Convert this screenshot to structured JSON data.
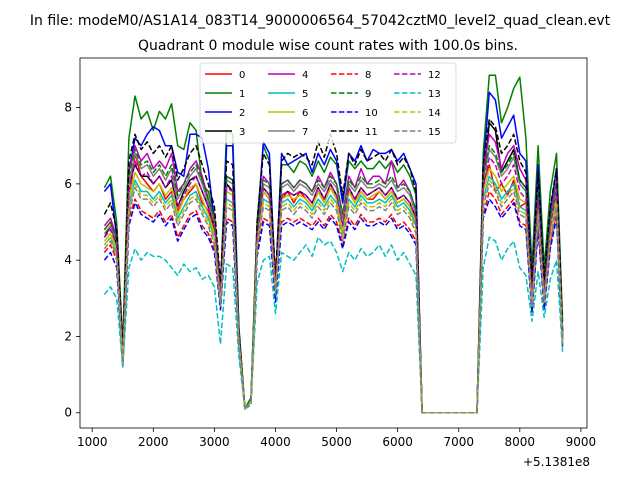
{
  "figure": {
    "suptitle": "In file: modeM0/AS1A14_083T14_9000006564_57042cztM0_level2_quad_clean.evt"
  },
  "chart_data": {
    "type": "line",
    "title": "Quadrant 0 module wise count rates with 100.0s bins.",
    "xlabel": "",
    "ylabel": "",
    "x_offset_label": "+5.1381e8",
    "xlim": [
      800,
      9100
    ],
    "ylim": [
      -0.4,
      9.3
    ],
    "x_ticks": [
      1000,
      2000,
      3000,
      4000,
      5000,
      6000,
      7000,
      8000,
      9000
    ],
    "y_ticks": [
      0,
      2,
      4,
      6,
      8
    ],
    "grid": false,
    "legend_placement": "top-center",
    "x": [
      1200,
      1300,
      1400,
      1500,
      1600,
      1700,
      1800,
      1900,
      2000,
      2100,
      2200,
      2300,
      2400,
      2500,
      2600,
      2700,
      2800,
      2900,
      3000,
      3100,
      3200,
      3300,
      3400,
      3500,
      3600,
      3700,
      3800,
      3900,
      4000,
      4100,
      4200,
      4300,
      4400,
      4500,
      4600,
      4700,
      4800,
      4900,
      5000,
      5100,
      5200,
      5300,
      5400,
      5500,
      5600,
      5700,
      5800,
      5900,
      6000,
      6100,
      6200,
      6300,
      6400,
      7300,
      7400,
      7500,
      7600,
      7700,
      7800,
      7900,
      8000,
      8100,
      8200,
      8300,
      8400,
      8500,
      8600,
      8700
    ],
    "series": [
      {
        "name": "0",
        "color": "#ff0000",
        "dash": "solid",
        "values": [
          4.8,
          5.0,
          4.5,
          1.5,
          5.5,
          6.8,
          6.2,
          6.0,
          5.8,
          6.0,
          5.6,
          5.8,
          5.3,
          5.6,
          5.8,
          6.0,
          5.5,
          5.3,
          4.8,
          3.2,
          6.0,
          5.8,
          2.0,
          0.1,
          0.3,
          4.8,
          5.8,
          5.6,
          3.5,
          5.6,
          5.8,
          5.5,
          5.8,
          5.6,
          5.4,
          5.8,
          5.5,
          5.9,
          5.6,
          4.8,
          5.8,
          5.5,
          5.8,
          5.6,
          5.6,
          5.8,
          5.6,
          5.8,
          5.5,
          5.6,
          5.4,
          5.0,
          0,
          0,
          6.0,
          6.5,
          5.8,
          6.0,
          5.7,
          6.1,
          5.4,
          5.5,
          3.0,
          5.7,
          3.2,
          5.0,
          5.9,
          2.0
        ]
      },
      {
        "name": "1",
        "color": "#008000",
        "dash": "solid",
        "values": [
          5.9,
          6.2,
          5.0,
          1.8,
          7.2,
          8.3,
          7.7,
          7.9,
          7.4,
          7.9,
          7.7,
          8.1,
          7.0,
          6.9,
          7.6,
          7.4,
          6.0,
          5.8,
          5.2,
          3.3,
          7.4,
          7.3,
          2.3,
          0.1,
          0.4,
          5.0,
          7.0,
          6.6,
          3.5,
          6.5,
          6.5,
          6.3,
          6.6,
          6.5,
          6.2,
          6.6,
          6.3,
          6.7,
          6.5,
          5.5,
          6.6,
          6.4,
          6.6,
          6.4,
          6.4,
          6.6,
          6.4,
          6.6,
          6.3,
          6.5,
          6.2,
          5.7,
          0,
          0,
          6.8,
          8.85,
          8.85,
          7.6,
          8.0,
          8.5,
          8.8,
          7.2,
          3.8,
          7.0,
          3.8,
          5.8,
          6.8,
          2.4
        ]
      },
      {
        "name": "2",
        "color": "#0000ff",
        "dash": "solid",
        "values": [
          5.8,
          6.0,
          4.6,
          1.6,
          6.3,
          7.2,
          7.0,
          7.3,
          7.5,
          7.4,
          7.0,
          7.0,
          6.3,
          6.2,
          7.3,
          7.3,
          7.2,
          6.4,
          5.0,
          3.1,
          7.0,
          7.0,
          2.2,
          0.1,
          0.3,
          4.7,
          7.1,
          6.8,
          3.3,
          6.8,
          6.5,
          6.6,
          6.7,
          6.8,
          6.3,
          6.8,
          6.5,
          6.9,
          6.6,
          5.5,
          6.8,
          6.6,
          7.0,
          6.6,
          6.9,
          6.8,
          6.8,
          6.9,
          6.6,
          6.8,
          6.4,
          6.0,
          0,
          0,
          6.4,
          8.4,
          8.2,
          7.2,
          7.5,
          7.8,
          6.8,
          6.6,
          3.4,
          6.5,
          3.4,
          5.3,
          6.4,
          2.1
        ]
      },
      {
        "name": "3",
        "color": "#000000",
        "dash": "solid",
        "values": [
          4.6,
          4.9,
          4.4,
          1.4,
          6.0,
          6.5,
          6.2,
          6.2,
          6.0,
          6.2,
          5.9,
          6.1,
          5.4,
          5.8,
          6.1,
          6.2,
          5.8,
          5.4,
          4.9,
          3.0,
          6.0,
          5.8,
          2.0,
          0.1,
          0.3,
          4.7,
          5.9,
          5.7,
          3.4,
          5.7,
          5.8,
          5.7,
          5.8,
          5.7,
          5.5,
          5.9,
          5.6,
          6.0,
          5.7,
          4.9,
          5.9,
          5.6,
          5.9,
          5.7,
          5.8,
          5.9,
          5.7,
          5.9,
          5.6,
          5.7,
          5.5,
          5.1,
          0,
          0,
          6.0,
          7.6,
          7.4,
          6.3,
          6.6,
          6.9,
          6.1,
          5.9,
          3.0,
          5.7,
          3.1,
          4.9,
          5.8,
          1.9
        ]
      },
      {
        "name": "4",
        "color": "#bf00bf",
        "dash": "solid",
        "values": [
          4.9,
          5.1,
          4.6,
          1.5,
          6.3,
          7.0,
          6.6,
          6.8,
          6.4,
          6.6,
          6.4,
          6.8,
          5.8,
          6.0,
          6.4,
          6.6,
          6.2,
          5.6,
          5.1,
          3.2,
          6.2,
          6.1,
          2.1,
          0.1,
          0.3,
          4.8,
          6.2,
          6.0,
          3.4,
          6.0,
          6.1,
          5.9,
          6.1,
          6.0,
          5.8,
          6.2,
          5.9,
          6.3,
          6.0,
          5.2,
          6.2,
          5.9,
          6.4,
          6.0,
          6.2,
          6.2,
          6.0,
          6.6,
          5.9,
          6.1,
          5.8,
          5.3,
          0,
          0,
          6.3,
          7.3,
          7.1,
          6.4,
          6.8,
          7.0,
          6.4,
          6.1,
          3.2,
          6.0,
          3.3,
          5.1,
          6.1,
          2.0
        ]
      },
      {
        "name": "5",
        "color": "#00bfbf",
        "dash": "solid",
        "values": [
          4.4,
          4.6,
          4.2,
          1.3,
          5.4,
          6.1,
          5.8,
          5.8,
          5.6,
          5.8,
          5.5,
          5.7,
          5.1,
          5.4,
          5.7,
          5.8,
          5.4,
          5.1,
          4.6,
          2.9,
          5.6,
          5.5,
          1.9,
          0.1,
          0.3,
          4.5,
          5.6,
          5.5,
          3.2,
          5.5,
          5.6,
          5.4,
          5.6,
          5.5,
          5.3,
          5.6,
          5.4,
          5.7,
          5.5,
          4.7,
          5.6,
          5.4,
          5.7,
          5.5,
          5.5,
          5.6,
          5.5,
          5.7,
          5.4,
          5.5,
          5.3,
          4.9,
          0,
          0,
          5.6,
          6.2,
          6.0,
          5.6,
          5.8,
          6.0,
          5.4,
          5.3,
          2.9,
          5.3,
          3.0,
          4.7,
          5.6,
          1.9
        ]
      },
      {
        "name": "6",
        "color": "#bfbf00",
        "dash": "solid",
        "values": [
          4.5,
          4.7,
          4.3,
          1.4,
          5.6,
          6.3,
          6.0,
          5.9,
          5.8,
          6.0,
          5.7,
          5.9,
          5.2,
          5.6,
          5.9,
          6.0,
          5.6,
          5.2,
          4.7,
          3.0,
          5.8,
          5.7,
          2.0,
          0.1,
          0.3,
          4.6,
          5.8,
          5.6,
          3.3,
          5.6,
          5.7,
          5.6,
          5.7,
          5.6,
          5.4,
          5.8,
          5.5,
          5.9,
          5.6,
          4.8,
          5.8,
          5.5,
          5.8,
          5.6,
          5.7,
          5.8,
          5.6,
          5.8,
          5.5,
          5.6,
          5.4,
          5.0,
          0,
          0,
          5.8,
          6.4,
          6.2,
          5.8,
          6.0,
          6.2,
          5.6,
          5.5,
          3.0,
          5.5,
          3.1,
          4.8,
          5.7,
          1.9
        ]
      },
      {
        "name": "7",
        "color": "#808080",
        "dash": "solid",
        "values": [
          4.7,
          4.9,
          4.5,
          1.5,
          6.0,
          6.8,
          6.4,
          6.5,
          6.2,
          6.4,
          6.1,
          6.4,
          5.6,
          5.9,
          6.2,
          6.4,
          6.0,
          5.5,
          5.0,
          3.1,
          6.1,
          6.0,
          2.0,
          0.1,
          0.3,
          4.7,
          6.0,
          5.9,
          3.4,
          5.9,
          6.0,
          5.8,
          6.0,
          5.9,
          5.7,
          6.0,
          5.8,
          6.1,
          5.9,
          5.1,
          6.0,
          5.8,
          6.1,
          5.9,
          5.9,
          6.0,
          5.9,
          6.1,
          5.8,
          5.9,
          5.7,
          5.2,
          0,
          0,
          6.1,
          6.9,
          6.7,
          6.2,
          6.4,
          6.7,
          6.0,
          5.8,
          3.1,
          5.8,
          3.2,
          5.0,
          5.9,
          2.0
        ]
      },
      {
        "name": "8",
        "color": "#ff0000",
        "dash": "dashed",
        "values": [
          4.2,
          4.4,
          4.0,
          1.3,
          5.1,
          5.6,
          5.3,
          5.2,
          5.1,
          5.3,
          5.0,
          5.2,
          4.6,
          4.9,
          5.2,
          5.3,
          4.9,
          4.7,
          4.3,
          2.8,
          5.1,
          5.0,
          1.8,
          0.1,
          0.3,
          4.2,
          5.1,
          5.0,
          3.0,
          5.0,
          5.1,
          5.0,
          5.1,
          5.0,
          4.9,
          5.1,
          4.9,
          5.2,
          5.0,
          4.4,
          5.1,
          4.9,
          5.2,
          5.0,
          5.0,
          5.1,
          5.0,
          5.2,
          4.9,
          5.0,
          4.8,
          4.5,
          0,
          0,
          5.2,
          5.8,
          5.6,
          5.2,
          5.4,
          5.6,
          5.0,
          4.9,
          2.7,
          4.9,
          2.8,
          4.4,
          5.2,
          1.8
        ]
      },
      {
        "name": "9",
        "color": "#008000",
        "dash": "dashed",
        "values": [
          4.8,
          5.0,
          4.5,
          1.5,
          6.2,
          6.9,
          6.5,
          6.6,
          6.3,
          6.5,
          6.2,
          6.5,
          5.7,
          6.0,
          6.3,
          6.5,
          6.1,
          5.6,
          5.1,
          3.2,
          6.2,
          6.1,
          2.1,
          0.1,
          0.3,
          4.8,
          6.1,
          6.0,
          3.4,
          6.0,
          6.1,
          5.9,
          6.1,
          6.0,
          5.8,
          6.1,
          5.9,
          6.2,
          6.0,
          5.2,
          6.1,
          5.9,
          6.2,
          6.0,
          6.0,
          6.1,
          6.0,
          6.2,
          5.9,
          6.0,
          5.8,
          5.3,
          0,
          0,
          6.2,
          7.0,
          6.8,
          6.3,
          6.5,
          6.8,
          6.1,
          5.9,
          3.2,
          5.9,
          3.3,
          5.1,
          6.0,
          2.0
        ]
      },
      {
        "name": "10",
        "color": "#0000ff",
        "dash": "dashed",
        "values": [
          4.0,
          4.2,
          3.8,
          1.2,
          4.9,
          5.5,
          5.2,
          5.1,
          5.0,
          5.2,
          4.9,
          5.1,
          4.5,
          4.8,
          5.1,
          5.2,
          4.8,
          4.6,
          4.2,
          2.7,
          5.0,
          4.9,
          1.8,
          0.1,
          0.3,
          4.1,
          5.0,
          4.9,
          2.9,
          4.9,
          5.0,
          4.9,
          5.0,
          4.9,
          4.8,
          5.0,
          4.8,
          5.1,
          4.9,
          4.3,
          5.0,
          4.8,
          5.1,
          4.9,
          4.9,
          5.0,
          4.9,
          5.1,
          4.8,
          4.9,
          4.7,
          4.4,
          0,
          0,
          5.1,
          5.6,
          5.4,
          5.1,
          5.3,
          5.5,
          4.9,
          4.8,
          2.6,
          4.8,
          2.7,
          4.3,
          5.1,
          1.7
        ]
      },
      {
        "name": "11",
        "color": "#000000",
        "dash": "dashed",
        "values": [
          5.2,
          5.5,
          4.8,
          1.6,
          6.6,
          7.3,
          6.9,
          7.1,
          6.8,
          7.0,
          6.7,
          7.0,
          6.1,
          6.4,
          6.8,
          7.0,
          6.5,
          6.0,
          5.4,
          3.4,
          6.6,
          6.5,
          2.2,
          0.1,
          0.3,
          5.0,
          6.8,
          6.5,
          3.5,
          6.6,
          6.8,
          6.7,
          6.8,
          6.7,
          6.5,
          7.1,
          6.7,
          7.3,
          6.8,
          5.7,
          6.8,
          6.5,
          6.9,
          6.6,
          6.7,
          6.8,
          6.6,
          6.9,
          6.5,
          6.7,
          6.4,
          5.8,
          0,
          0,
          6.5,
          7.7,
          7.5,
          6.8,
          7.0,
          7.3,
          6.6,
          6.3,
          3.4,
          6.3,
          3.5,
          5.4,
          6.4,
          2.1
        ]
      },
      {
        "name": "12",
        "color": "#bf00bf",
        "dash": "dashed",
        "values": [
          4.6,
          4.8,
          4.4,
          1.4,
          5.8,
          6.6,
          6.2,
          6.3,
          6.0,
          6.2,
          5.9,
          6.2,
          5.4,
          5.7,
          6.0,
          6.2,
          5.8,
          5.4,
          4.9,
          3.1,
          5.9,
          5.8,
          2.0,
          0.1,
          0.3,
          4.6,
          5.9,
          5.7,
          3.3,
          5.7,
          5.8,
          5.7,
          5.8,
          5.7,
          5.5,
          5.9,
          5.6,
          6.0,
          5.7,
          4.9,
          5.9,
          5.6,
          5.9,
          5.7,
          5.8,
          5.9,
          5.7,
          5.9,
          5.6,
          5.7,
          5.5,
          5.1,
          0,
          0,
          5.9,
          6.7,
          6.5,
          6.0,
          6.2,
          6.5,
          5.8,
          5.6,
          3.0,
          5.6,
          3.1,
          4.9,
          5.8,
          1.9
        ]
      },
      {
        "name": "13",
        "color": "#00bfbf",
        "dash": "dashed",
        "values": [
          3.1,
          3.3,
          3.0,
          1.2,
          3.8,
          4.3,
          4.0,
          4.2,
          4.1,
          4.1,
          4.0,
          3.8,
          3.6,
          3.9,
          3.7,
          3.8,
          3.5,
          3.6,
          3.3,
          1.8,
          3.9,
          3.8,
          1.5,
          0.1,
          0.2,
          3.4,
          4.0,
          4.1,
          2.6,
          4.2,
          4.1,
          4.0,
          4.2,
          4.4,
          4.1,
          4.6,
          4.4,
          4.5,
          4.2,
          3.7,
          4.2,
          4.0,
          4.3,
          4.1,
          4.2,
          4.4,
          4.1,
          4.4,
          4.0,
          4.2,
          3.9,
          3.6,
          0,
          0,
          3.8,
          4.6,
          4.5,
          4.0,
          4.3,
          4.5,
          3.8,
          3.6,
          2.4,
          3.7,
          2.5,
          3.5,
          4.0,
          1.6
        ]
      },
      {
        "name": "14",
        "color": "#bfbf00",
        "dash": "dashed",
        "values": [
          4.4,
          4.6,
          4.1,
          1.3,
          5.3,
          6.0,
          5.7,
          5.7,
          5.5,
          5.7,
          5.4,
          5.6,
          5.0,
          5.3,
          5.6,
          5.7,
          5.3,
          5.0,
          4.5,
          2.9,
          5.5,
          5.4,
          1.9,
          0.1,
          0.3,
          4.4,
          5.5,
          5.4,
          3.2,
          5.4,
          5.5,
          5.3,
          5.5,
          5.4,
          5.2,
          5.5,
          5.3,
          5.6,
          5.4,
          4.6,
          5.5,
          5.3,
          5.6,
          5.4,
          5.4,
          5.5,
          5.4,
          5.6,
          5.3,
          5.4,
          5.2,
          4.8,
          0,
          0,
          5.5,
          6.1,
          5.9,
          5.5,
          5.7,
          5.9,
          5.3,
          5.2,
          2.8,
          5.2,
          2.9,
          4.6,
          5.5,
          1.8
        ]
      },
      {
        "name": "15",
        "color": "#808080",
        "dash": "dashed",
        "values": [
          4.3,
          4.5,
          4.1,
          1.3,
          5.2,
          5.9,
          5.6,
          5.6,
          5.4,
          5.6,
          5.3,
          5.5,
          4.9,
          5.2,
          5.5,
          5.6,
          5.2,
          4.9,
          4.4,
          2.8,
          5.4,
          5.3,
          1.9,
          0.1,
          0.3,
          4.3,
          5.4,
          5.3,
          3.1,
          5.3,
          5.4,
          5.2,
          5.4,
          5.3,
          5.1,
          5.4,
          5.2,
          5.5,
          5.3,
          4.5,
          5.4,
          5.2,
          5.5,
          5.3,
          5.3,
          5.4,
          5.3,
          5.5,
          5.2,
          5.3,
          5.1,
          4.7,
          0,
          0,
          5.4,
          6.0,
          5.8,
          5.4,
          5.6,
          5.8,
          5.2,
          5.1,
          2.8,
          5.1,
          2.9,
          4.5,
          5.4,
          1.8
        ]
      }
    ]
  }
}
